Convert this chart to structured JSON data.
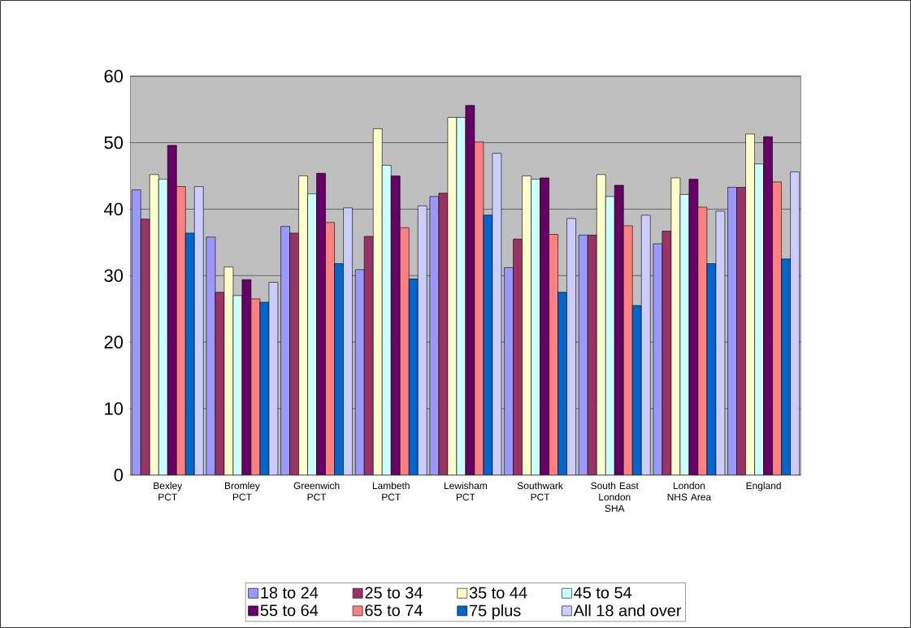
{
  "chart_data": {
    "type": "bar",
    "categories": [
      "Bexley PCT",
      "Bromley PCT",
      "Greenwich PCT",
      "Lambeth PCT",
      "Lewisham PCT",
      "Southwark PCT",
      "South East London SHA",
      "London NHS Area",
      "England"
    ],
    "series": [
      {
        "name": "18 to 24",
        "color": "#9999ff",
        "values": [
          42.9,
          35.8,
          37.4,
          30.9,
          41.9,
          31.2,
          36.1,
          34.8,
          43.3
        ]
      },
      {
        "name": "25 to 34",
        "color": "#993366",
        "values": [
          38.5,
          27.5,
          36.4,
          35.9,
          42.4,
          35.5,
          36.1,
          36.7,
          43.3
        ]
      },
      {
        "name": "35 to 44",
        "color": "#ffffcc",
        "values": [
          45.2,
          31.3,
          45.0,
          52.1,
          53.8,
          45.0,
          45.2,
          44.7,
          51.3
        ]
      },
      {
        "name": "45 to 54",
        "color": "#ccffff",
        "values": [
          44.5,
          27.0,
          42.3,
          46.6,
          53.8,
          44.5,
          41.9,
          42.2,
          46.8
        ]
      },
      {
        "name": "55 to 64",
        "color": "#660066",
        "values": [
          49.6,
          29.4,
          45.4,
          45.0,
          55.6,
          44.7,
          43.6,
          44.5,
          50.9
        ]
      },
      {
        "name": "65 to 74",
        "color": "#ff8080",
        "values": [
          43.4,
          26.5,
          38.0,
          37.2,
          50.1,
          36.2,
          37.5,
          40.3,
          44.1
        ]
      },
      {
        "name": "75 plus",
        "color": "#0066cc",
        "values": [
          36.4,
          26.0,
          31.8,
          29.5,
          39.1,
          27.5,
          25.5,
          31.8,
          32.5
        ]
      },
      {
        "name": "All 18 and over",
        "color": "#ccccff",
        "values": [
          43.4,
          29.0,
          40.2,
          40.5,
          48.4,
          38.6,
          39.1,
          39.7,
          45.6
        ]
      }
    ],
    "ylim": [
      0,
      60
    ],
    "yticks": [
      0,
      10,
      20,
      30,
      40,
      50,
      60
    ],
    "grid": "y",
    "legend": "bottom"
  }
}
